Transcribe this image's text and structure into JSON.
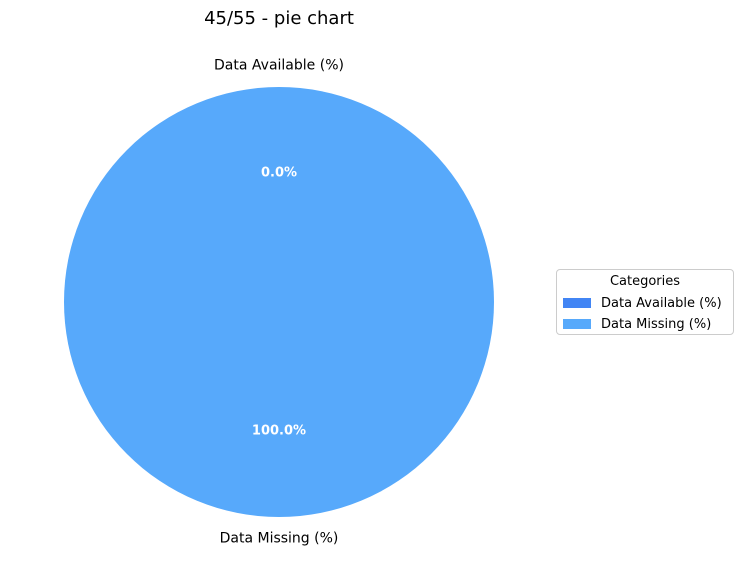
{
  "chart_data": {
    "type": "pie",
    "title": "45/55 - pie chart",
    "slices": [
      {
        "label": "Data Available (%)",
        "value": 0.0,
        "pct_label": "0.0%",
        "color": "#4285f4"
      },
      {
        "label": "Data Missing (%)",
        "value": 100.0,
        "pct_label": "100.0%",
        "color": "#57a9fb"
      }
    ],
    "legend": {
      "title": "Categories",
      "placement": "center-right"
    }
  }
}
